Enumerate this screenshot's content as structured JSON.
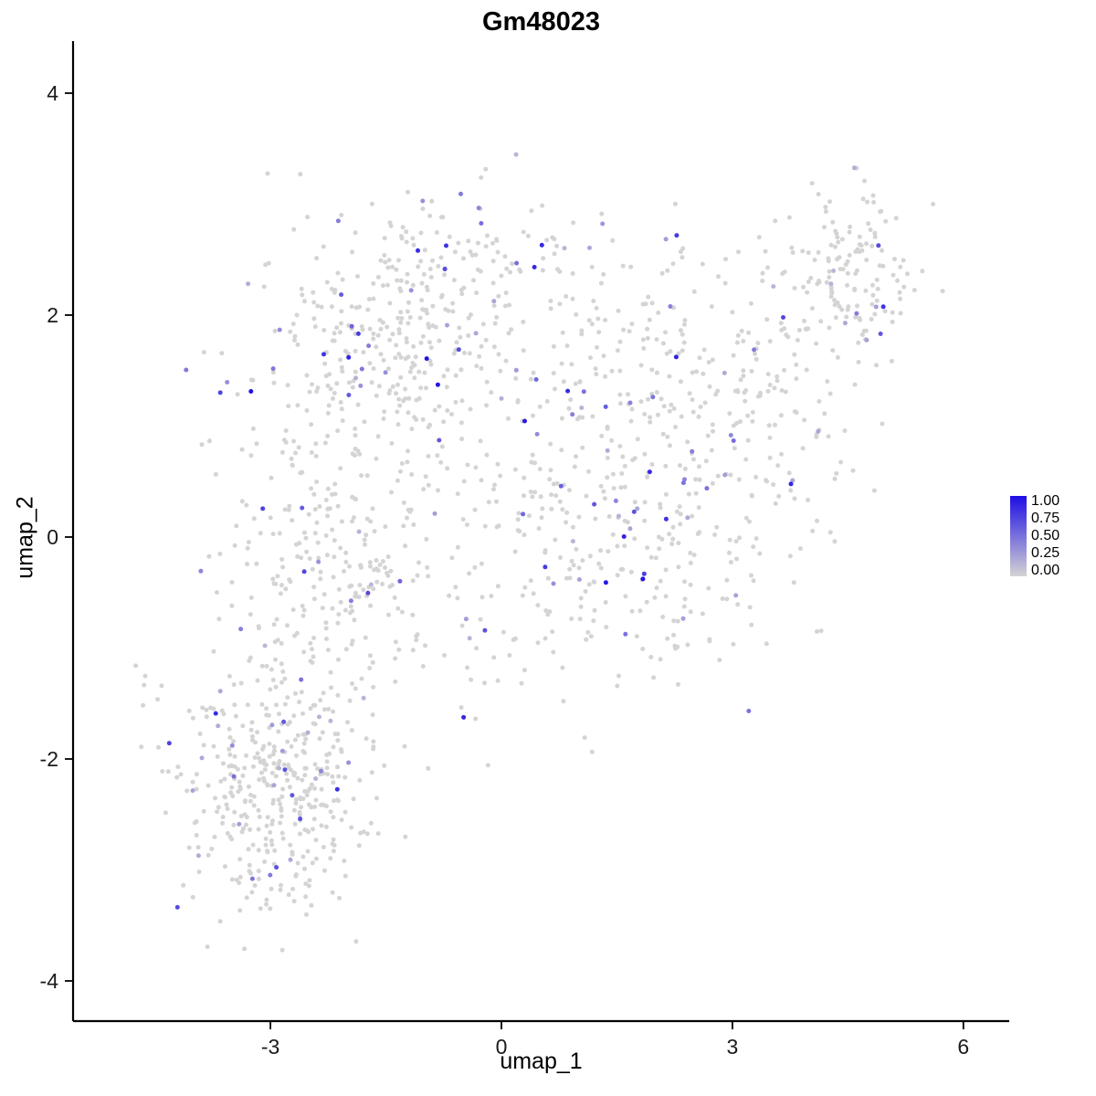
{
  "chart_data": {
    "type": "scatter",
    "title": "Gm48023",
    "xlabel": "umap_1",
    "ylabel": "umap_2",
    "xticks": [
      -3,
      0,
      3,
      6
    ],
    "yticks": [
      4,
      2,
      0,
      -2,
      -4
    ],
    "xlim": [
      -5.5,
      6.6
    ],
    "ylim": [
      -4.4,
      4.45
    ],
    "grid": false,
    "legend": {
      "position": "right",
      "ticks": [
        "1.00",
        "0.75",
        "0.50",
        "0.25",
        "0.00"
      ],
      "color_high": "#1e0ee4",
      "color_low": "#d4d4d4"
    },
    "point": {
      "radius": 2.5,
      "color_low": "#d4d4d4",
      "color_high": "#1e0ee4"
    },
    "seed": 20240613,
    "expressed_fraction": 0.085,
    "total_points": 1839,
    "clusters": [
      {
        "name": "bottom-left-dense",
        "cx": -2.9,
        "cy": -2.25,
        "sx": 0.62,
        "sy": 0.55,
        "n": 420
      },
      {
        "name": "left-mid",
        "cx": -2.1,
        "cy": -0.2,
        "sx": 0.7,
        "sy": 0.62,
        "n": 260
      },
      {
        "name": "upper-left",
        "cx": -1.5,
        "cy": 1.75,
        "sx": 0.85,
        "sy": 0.6,
        "n": 320
      },
      {
        "name": "top",
        "cx": -0.3,
        "cy": 2.6,
        "sx": 0.7,
        "sy": 0.35,
        "n": 80
      },
      {
        "name": "center",
        "cx": 0.6,
        "cy": 0.1,
        "sx": 0.85,
        "sy": 0.85,
        "n": 190
      },
      {
        "name": "upper-mid",
        "cx": 1.6,
        "cy": 1.6,
        "sx": 0.8,
        "sy": 0.6,
        "n": 110
      },
      {
        "name": "mid-right-low",
        "cx": 2.2,
        "cy": -0.2,
        "sx": 0.8,
        "sy": 0.55,
        "n": 100
      },
      {
        "name": "right-arm",
        "cx": 3.0,
        "cy": 1.0,
        "sx": 0.75,
        "sy": 0.75,
        "n": 200
      },
      {
        "name": "top-right-dense",
        "cx": 4.55,
        "cy": 2.35,
        "sx": 0.45,
        "sy": 0.38,
        "n": 155
      },
      {
        "name": "outlier-left",
        "cx": -4.72,
        "cy": -1.25,
        "sx": 0.06,
        "sy": 0.1,
        "n": 4
      }
    ]
  }
}
